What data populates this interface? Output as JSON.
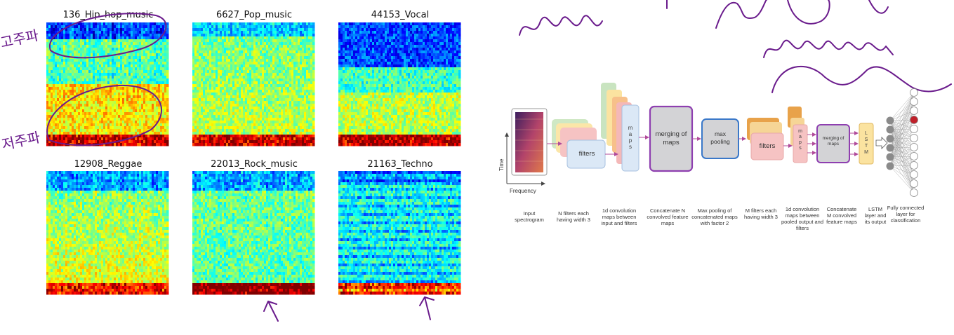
{
  "spectrograms": [
    {
      "title": "136_Hip_hop_music",
      "style": "hiphop"
    },
    {
      "title": "6627_Pop_music",
      "style": "pop"
    },
    {
      "title": "44153_Vocal",
      "style": "vocal"
    },
    {
      "title": "12908_Reggae",
      "style": "reggae"
    },
    {
      "title": "22013_Rock_music",
      "style": "rock"
    },
    {
      "title": "21163_Techno",
      "style": "techno"
    }
  ],
  "annotations": {
    "high_freq_note": "고주파",
    "low_freq_note": "저주파"
  },
  "diagram": {
    "axis_time": "Time",
    "axis_frequency": "Frequency",
    "box_filters_1": "filters",
    "box_maps_1": "m a p s",
    "box_merging_1": "merging of maps",
    "box_max_pooling": "max pooling",
    "box_filters_2": "filters",
    "box_maps_2": "m a p s",
    "box_merging_2": "merging of maps",
    "box_lstm": "L S T M",
    "captions": [
      "Input spectrogram",
      "N filters each having width 3",
      "1d convolution maps between input and filters",
      "Concatenate N convolved feature maps",
      "Max pooling of concatenated maps with factor 2",
      "M filters each having width 3",
      "1d convolution maps between pooled output and filters",
      "Concatenate M convolved feature maps",
      "LSTM layer and its output",
      "Fully connected layer for classification"
    ]
  },
  "colors": {
    "purple_ink": "#6a1b8c",
    "highlight_node": "#c0202a",
    "merge_border": "#8e3fb0",
    "pool_border": "#3a78c9"
  }
}
